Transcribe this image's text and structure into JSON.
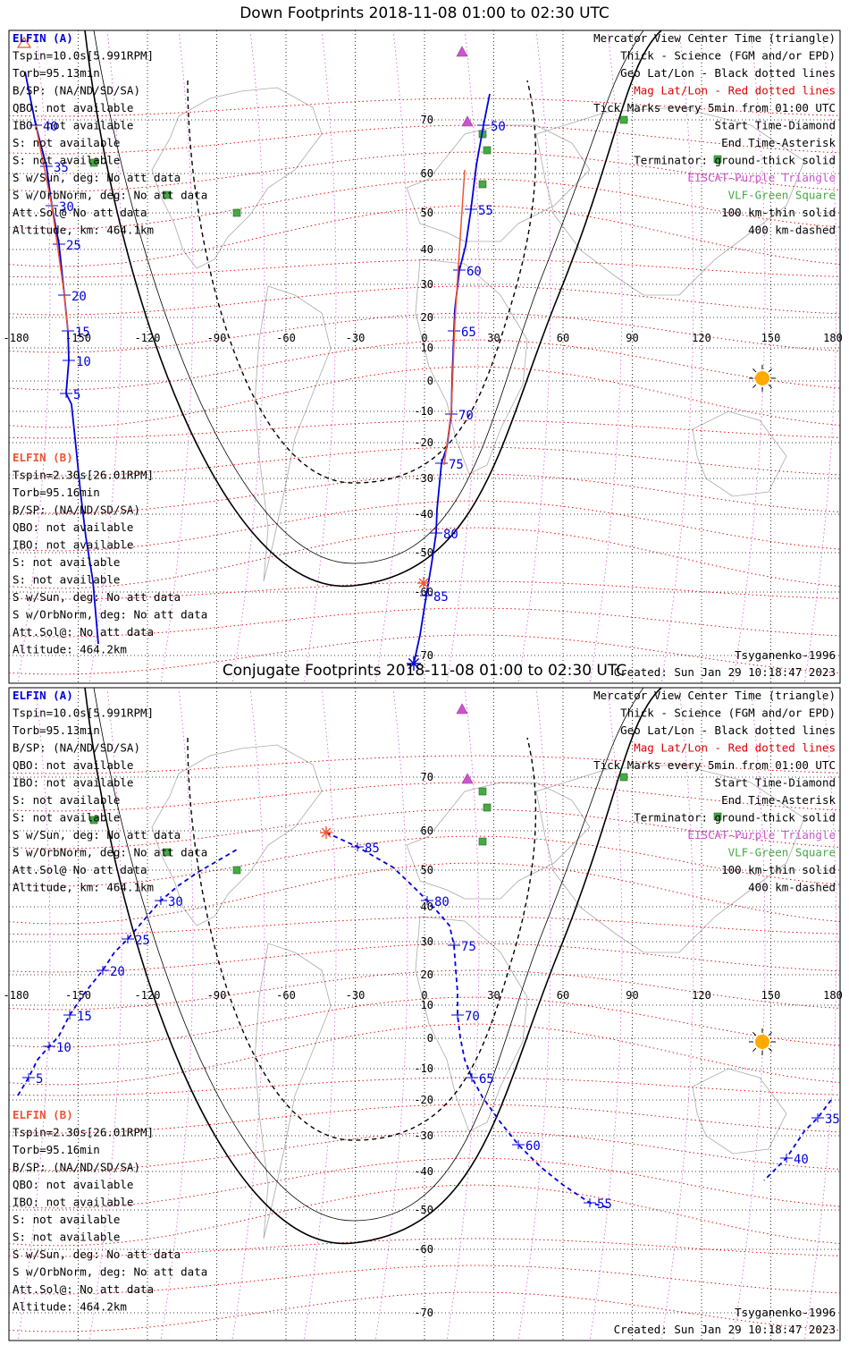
{
  "colors": {
    "blue": "#0000dd",
    "orange": "#ee5533",
    "red_grid": "#dd0000",
    "pink_grid": "#dd66dd",
    "magenta": "#cc55cc",
    "green": "#44aa44",
    "sun": "#ffaa00",
    "land": "#aaaaaa"
  },
  "panels": [
    {
      "title": "Down Footprints 2018-11-08 01:00 to 02:30 UTC",
      "elfin_a": {
        "name": "ELFIN (A)",
        "lines": [
          "Tspin=10.0s[5.991RPM]",
          "Torb=95.13min",
          "B/SP: (NA/ND/SD/SA)",
          "QBO: not available",
          "IBO: not available",
          "S: not available",
          "S: not available",
          "S w/Sun, deg: No att data",
          "S w/OrbNorm, deg: No att data",
          "Att.Sol@ No att data",
          "Altitude, km: 464.1km"
        ]
      },
      "elfin_b": {
        "name": "ELFIN (B)",
        "lines": [
          "Tspin=2.30s[26.01RPM]",
          "Torb=95.16min",
          "B/SP: (NA/ND/SD/SA)",
          "QBO: not available",
          "IBO: not available",
          "S: not available",
          "S: not available",
          "S w/Sun, deg: No att data",
          "S w/OrbNorm, deg: No att data",
          "Att.Sol@: No att data",
          "Altitude: 464.2km"
        ]
      },
      "legend": [
        {
          "text": "Mercator View Center Time (triangle)",
          "color": "#000000"
        },
        {
          "text": "Thick - Science (FGM and/or EPD)",
          "color": "#000000"
        },
        {
          "text": "Geo Lat/Lon - Black dotted lines",
          "color": "#000000"
        },
        {
          "text": "Mag Lat/Lon - Red dotted lines",
          "color": "#dd0000"
        },
        {
          "text": "Tick Marks every 5min from 01:00 UTC",
          "color": "#000000"
        },
        {
          "text": "Start Time-Diamond",
          "color": "#000000"
        },
        {
          "text": "End Time-Asterisk",
          "color": "#000000"
        },
        {
          "text": "Terminator: ground-thick solid",
          "color": "#000000"
        },
        {
          "text": "EISCAT-Purple Triangle",
          "color": "#cc55cc"
        },
        {
          "text": "VLF-Green Square",
          "color": "#44aa44"
        },
        {
          "text": "100 km-thin solid",
          "color": "#000000"
        },
        {
          "text": "400 km-dashed",
          "color": "#000000"
        }
      ],
      "model": "Tsyganenko-1996",
      "created": "Created: Sun Jan 29 10:18:47 2023",
      "lon_labels": [
        "-180",
        "-150",
        "-120",
        "-90",
        "-60",
        "-30",
        "0",
        "30",
        "60",
        "90",
        "120",
        "150",
        "180"
      ],
      "lat_labels": [
        "70",
        "60",
        "50",
        "40",
        "30",
        "20",
        "10",
        "0",
        "-10",
        "-20",
        "-30",
        "-40",
        "-50",
        "-60",
        "-70"
      ],
      "track_a": {
        "labels": [
          "50",
          "55",
          "60",
          "65",
          "70",
          "75",
          "80",
          "85"
        ],
        "points": [
          [
            548,
            75
          ],
          [
            541,
            110
          ],
          [
            533,
            155
          ],
          [
            527,
            204
          ],
          [
            521,
            245
          ],
          [
            514,
            272
          ],
          [
            509,
            316
          ],
          [
            508,
            340
          ],
          [
            506,
            392
          ],
          [
            505,
            433
          ],
          [
            500,
            470
          ],
          [
            494,
            488
          ],
          [
            489,
            540
          ],
          [
            488,
            566
          ],
          [
            483,
            600
          ],
          [
            477,
            636
          ],
          [
            470,
            680
          ],
          [
            463,
            712
          ]
        ]
      },
      "track_b": {
        "labels": [
          "40",
          "35",
          "30",
          "25",
          "20",
          "15",
          "10",
          "5"
        ],
        "points": [
          [
            28,
            50
          ],
          [
            40,
            110
          ],
          [
            52,
            156
          ],
          [
            58,
            200
          ],
          [
            66,
            243
          ],
          [
            72,
            300
          ],
          [
            76,
            340
          ],
          [
            77,
            373
          ],
          [
            74,
            410
          ],
          [
            80,
            422
          ],
          [
            85,
            470
          ],
          [
            90,
            520
          ],
          [
            96,
            570
          ],
          [
            104,
            620
          ],
          [
            110,
            690
          ]
        ]
      }
    },
    {
      "title": "Conjugate Footprints 2018-11-08 01:00 to 02:30 UTC",
      "elfin_a": {
        "name": "ELFIN (A)",
        "lines": [
          "Tspin=10.0s[5.991RPM]",
          "Torb=95.13min",
          "B/SP: (NA/ND/SD/SA)",
          "QBO: not available",
          "IBO: not available",
          "S: not available",
          "S: not available",
          "S w/Sun, deg: No att data",
          "S w/OrbNorm, deg: No att data",
          "Att.Sol@ No att data",
          "Altitude, km: 464.1km"
        ]
      },
      "elfin_b": {
        "name": "ELFIN (B)",
        "lines": [
          "Tspin=2.30s[26.01RPM]",
          "Torb=95.16min",
          "B/SP: (NA/ND/SD/SA)",
          "QBO: not available",
          "IBO: not available",
          "S: not available",
          "S: not available",
          "S w/Sun, deg: No att data",
          "S w/OrbNorm, deg: No att data",
          "Att.Sol@: No att data",
          "Altitude: 464.2km"
        ]
      },
      "legend": [
        {
          "text": "Mercator View Center Time (triangle)",
          "color": "#000000"
        },
        {
          "text": "Thick - Science (FGM and/or EPD)",
          "color": "#000000"
        },
        {
          "text": "Geo Lat/Lon - Black dotted lines",
          "color": "#000000"
        },
        {
          "text": "Mag Lat/Lon - Red dotted lines",
          "color": "#dd0000"
        },
        {
          "text": "Tick Marks every 5min from 01:00 UTC",
          "color": "#000000"
        },
        {
          "text": "Start Time-Diamond",
          "color": "#000000"
        },
        {
          "text": "End Time-Asterisk",
          "color": "#000000"
        },
        {
          "text": "Terminator: ground-thick solid",
          "color": "#000000"
        },
        {
          "text": "EISCAT-Purple Triangle",
          "color": "#cc55cc"
        },
        {
          "text": "VLF-Green Square",
          "color": "#44aa44"
        },
        {
          "text": "100 km-thin solid",
          "color": "#000000"
        },
        {
          "text": "400 km-dashed",
          "color": "#000000"
        }
      ],
      "model": "Tsyganenko-1996",
      "created": "Created: Sun Jan 29 10:18:47 2023",
      "lon_labels": [
        "-180",
        "-150",
        "-120",
        "-90",
        "-60",
        "-30",
        "0",
        "30",
        "60",
        "90",
        "120",
        "150",
        "180"
      ],
      "lat_labels": [
        "70",
        "60",
        "50",
        "40",
        "30",
        "20",
        "10",
        "0",
        "-10",
        "-20",
        "-30",
        "-40",
        "-50",
        "-60",
        "-70"
      ],
      "track_a": {
        "labels": [
          "85",
          "80",
          "75",
          "70",
          "65",
          "60",
          "55"
        ],
        "points": [
          [
            365,
            166
          ],
          [
            400,
            182
          ],
          [
            440,
            205
          ],
          [
            462,
            226
          ],
          [
            478,
            242
          ],
          [
            490,
            255
          ],
          [
            503,
            270
          ],
          [
            508,
            292
          ],
          [
            510,
            320
          ],
          [
            512,
            345
          ],
          [
            512,
            370
          ],
          [
            515,
            395
          ],
          [
            520,
            420
          ],
          [
            528,
            440
          ],
          [
            540,
            462
          ],
          [
            560,
            490
          ],
          [
            580,
            515
          ],
          [
            605,
            540
          ],
          [
            630,
            560
          ],
          [
            660,
            580
          ],
          [
            680,
            585
          ]
        ]
      },
      "track_a_east": {
        "labels": [
          "35",
          "40"
        ],
        "points": [
          [
            930,
            465
          ],
          [
            915,
            485
          ],
          [
            900,
            500
          ],
          [
            880,
            530
          ],
          [
            855,
            555
          ]
        ]
      },
      "track_b": {
        "labels": [
          "5",
          "10",
          "15",
          "20",
          "25",
          "30"
        ],
        "points": [
          [
            20,
            460
          ],
          [
            32,
            440
          ],
          [
            42,
            420
          ],
          [
            55,
            405
          ],
          [
            65,
            395
          ],
          [
            78,
            370
          ],
          [
            95,
            345
          ],
          [
            115,
            320
          ],
          [
            128,
            300
          ],
          [
            143,
            285
          ],
          [
            160,
            265
          ],
          [
            180,
            242
          ],
          [
            200,
            225
          ],
          [
            222,
            210
          ],
          [
            248,
            195
          ],
          [
            265,
            185
          ]
        ]
      }
    }
  ]
}
